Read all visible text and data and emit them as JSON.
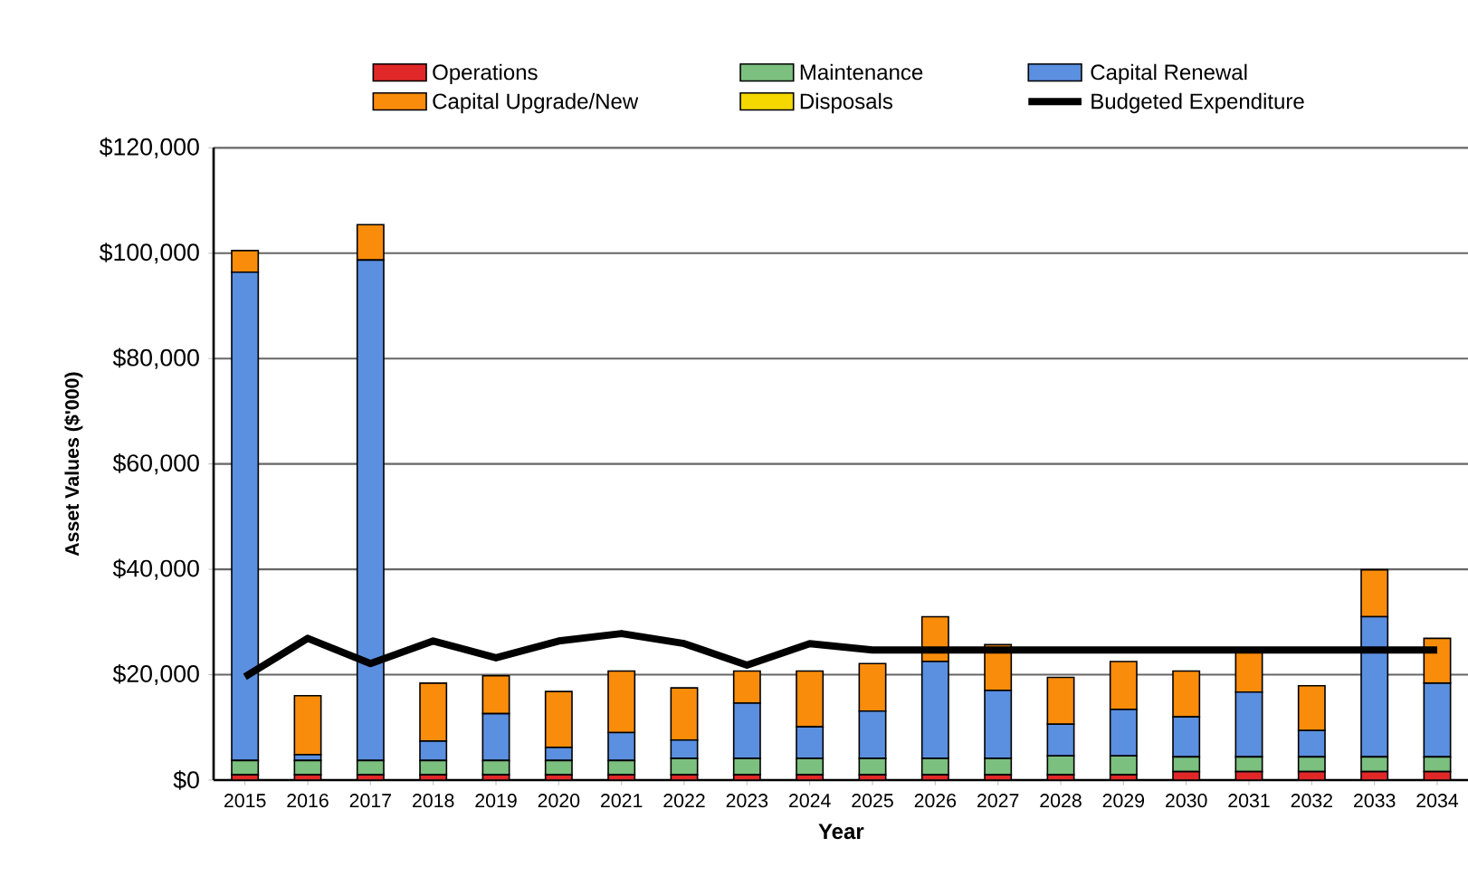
{
  "chart_data": {
    "type": "bar",
    "stacked": true,
    "xlabel": "Year",
    "ylabel": "Asset Values ($'000)",
    "categories": [
      "2015",
      "2016",
      "2017",
      "2018",
      "2019",
      "2020",
      "2021",
      "2022",
      "2023",
      "2024",
      "2025",
      "2026",
      "2027",
      "2028",
      "2029",
      "2030",
      "2031",
      "2032",
      "2033",
      "2034"
    ],
    "series": [
      {
        "name": "Operations",
        "color": "#e02828",
        "values": [
          1000,
          1000,
          1000,
          1000,
          1000,
          1000,
          1000,
          1000,
          1000,
          1000,
          1000,
          1000,
          1000,
          1000,
          1000,
          1600,
          1600,
          1600,
          1600,
          1600
        ]
      },
      {
        "name": "Maintenance",
        "color": "#7cc07f",
        "values": [
          2700,
          2700,
          2700,
          2700,
          2700,
          2700,
          2700,
          3100,
          3100,
          3100,
          3100,
          3100,
          3100,
          3600,
          3600,
          2800,
          2800,
          2800,
          2800,
          2800
        ]
      },
      {
        "name": "Capital Renewal",
        "color": "#5b8fe0",
        "values": [
          92700,
          1100,
          95000,
          3700,
          8900,
          2500,
          5300,
          3500,
          10500,
          6000,
          9000,
          18400,
          12900,
          6000,
          8800,
          7600,
          12300,
          5000,
          26600,
          14000
        ]
      },
      {
        "name": "Capital Upgrade/New",
        "color": "#f98c0a",
        "values": [
          4100,
          11200,
          6700,
          11000,
          7200,
          10600,
          11700,
          9900,
          6100,
          10600,
          9000,
          8500,
          8700,
          8900,
          9100,
          8700,
          7700,
          8500,
          8900,
          8500
        ]
      },
      {
        "name": "Disposals",
        "color": "#f5d800",
        "values": [
          0,
          0,
          0,
          0,
          0,
          0,
          0,
          0,
          0,
          0,
          0,
          0,
          0,
          0,
          0,
          0,
          0,
          0,
          0,
          0
        ]
      },
      {
        "name": "Budgeted Expenditure",
        "type": "line",
        "color": "#000000",
        "values": [
          19600,
          26900,
          22100,
          26400,
          23200,
          26400,
          27800,
          25900,
          21800,
          25900,
          24700,
          24700,
          24700,
          24700,
          24700,
          24700,
          24700,
          24700,
          24700,
          24700
        ]
      }
    ],
    "ylim": [
      0,
      120000
    ],
    "yticks": [
      {
        "value": 0,
        "label": "$0"
      },
      {
        "value": 20000,
        "label": "$20,000"
      },
      {
        "value": 40000,
        "label": "$40,000"
      },
      {
        "value": 60000,
        "label": "$60,000"
      },
      {
        "value": 80000,
        "label": "$80,000"
      },
      {
        "value": 100000,
        "label": "$100,000"
      },
      {
        "value": 120000,
        "label": "$120,000"
      }
    ],
    "grid": "y",
    "legend": "top",
    "marker": "none",
    "line_style": "solid"
  }
}
